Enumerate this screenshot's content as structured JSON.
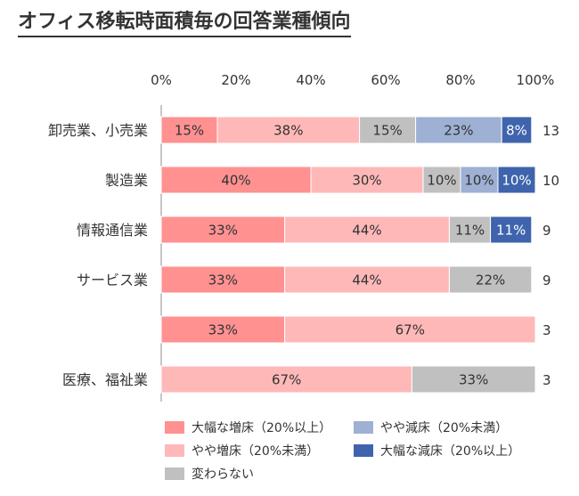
{
  "title": "オフィス移転時面積毎の回答業種傾向",
  "chart_data": {
    "type": "bar",
    "orientation": "horizontal",
    "stacked": true,
    "xlim": [
      0,
      100
    ],
    "x_ticks": [
      "0%",
      "20%",
      "40%",
      "60%",
      "80%",
      "100%"
    ],
    "categories": [
      "卸売業、小売業",
      "製造業",
      "情報通信業",
      "サービス業",
      "",
      "医療、福祉業"
    ],
    "counts": [
      "13",
      "10",
      "9",
      "9",
      "3",
      "3"
    ],
    "series": [
      {
        "name": "大幅な増床（20%以上）",
        "color": "#ff9191",
        "values": [
          15,
          40,
          33,
          33,
          33,
          0
        ],
        "labels": [
          "15%",
          "40%",
          "33%",
          "33%",
          "33%",
          ""
        ]
      },
      {
        "name": "やや増床（20%未満）",
        "color": "#ffb8b8",
        "values": [
          38,
          30,
          44,
          44,
          67,
          67
        ],
        "labels": [
          "38%",
          "30%",
          "44%",
          "44%",
          "67%",
          "67%"
        ]
      },
      {
        "name": "変わらない",
        "color": "#c0c0c0",
        "values": [
          15,
          10,
          11,
          22,
          0,
          33
        ],
        "labels": [
          "15%",
          "10%",
          "11%",
          "22%",
          "",
          "33%"
        ]
      },
      {
        "name": "やや減床（20%未満）",
        "color": "#9eb0d3",
        "values": [
          23,
          10,
          0,
          0,
          0,
          0
        ],
        "labels": [
          "23%",
          "10%",
          "",
          "",
          "",
          ""
        ]
      },
      {
        "name": "大幅な減床（20%以上）",
        "color": "#3f64ad",
        "values": [
          8,
          10,
          11,
          0,
          0,
          0
        ],
        "labels": [
          "8%",
          "10%",
          "11%",
          "",
          "",
          ""
        ]
      }
    ],
    "legend_placement": "bottom",
    "grid": false
  }
}
